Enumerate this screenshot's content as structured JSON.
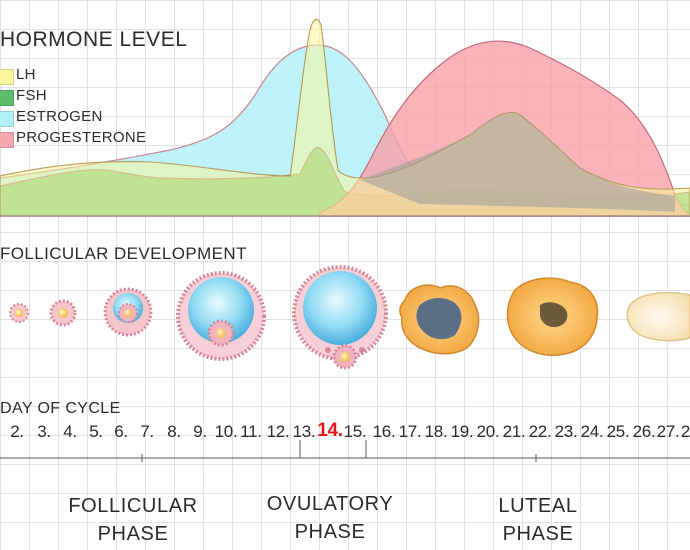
{
  "hormone_section": {
    "title": "HORMONE LEVEL",
    "legend": [
      {
        "label": "LH",
        "color": "#fbf59b",
        "icon": "lh-swatch"
      },
      {
        "label": "FSH",
        "color": "#5cbc6a",
        "icon": "fsh-swatch"
      },
      {
        "label": "ESTROGEN",
        "color": "#b3f1f8",
        "icon": "estrogen-swatch"
      },
      {
        "label": "PROGESTERONE",
        "color": "#f4a6ae",
        "icon": "progesterone-swatch"
      }
    ]
  },
  "follicle_section": {
    "title": "FOLLICULAR DEVELOPMENT"
  },
  "cycle_section": {
    "title": "DAY OF CYCLE",
    "days": [
      "2.",
      "3.",
      "4.",
      "5.",
      "6.",
      "7.",
      "8.",
      "9.",
      "10.",
      "11.",
      "12.",
      "13.",
      "14.",
      "15.",
      "16.",
      "17.",
      "18.",
      "19.",
      "20.",
      "21.",
      "22.",
      "23.",
      "24.",
      "25.",
      "26.",
      "27.",
      "2"
    ],
    "highlight_day": "14.",
    "highlight_color": "#e3141a"
  },
  "phases": [
    {
      "line1": "FOLLICULAR",
      "line2": "PHASE"
    },
    {
      "line1": "OVULATORY",
      "line2": "PHASE"
    },
    {
      "line1": "LUTEAL",
      "line2": "PHASE"
    }
  ]
}
